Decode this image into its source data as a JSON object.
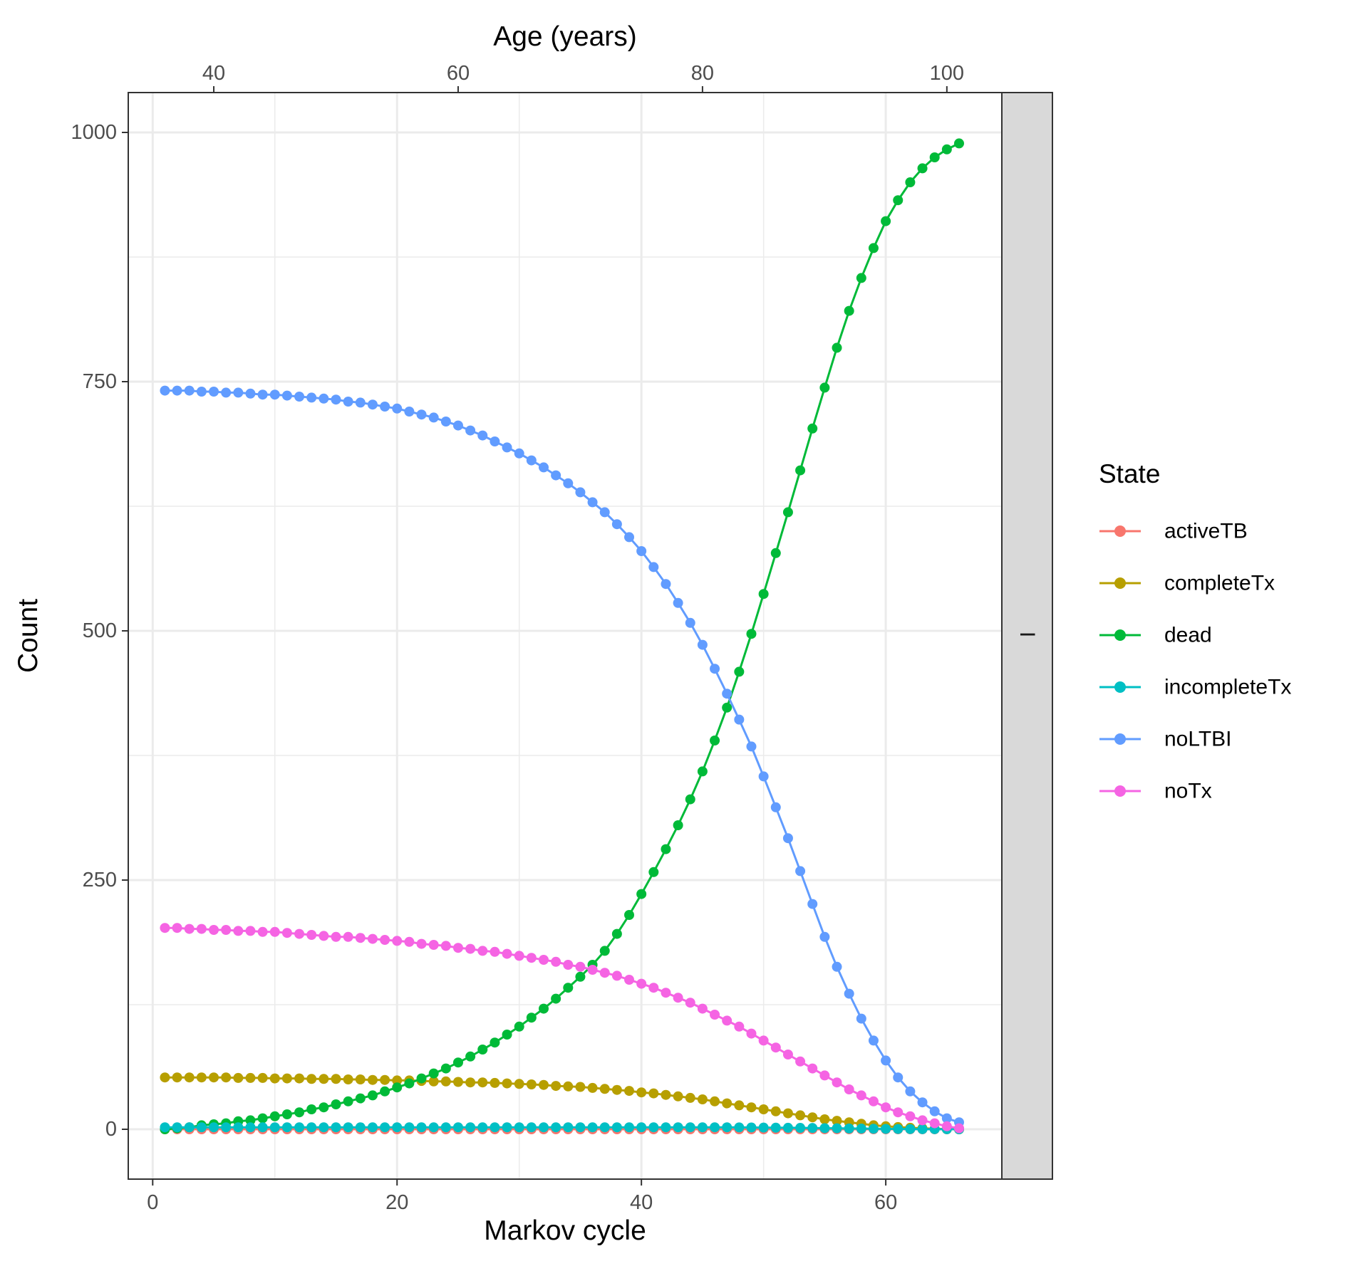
{
  "chart_data": {
    "type": "line",
    "xlabel": "Markov cycle",
    "x2label": "Age (years)",
    "ylabel": "Count",
    "legend_title": "State",
    "legend_position": "right",
    "facet_strip_label": "I",
    "grid": true,
    "xlim": [
      -2,
      69.5
    ],
    "ylim": [
      -50,
      1040
    ],
    "x_ticks": [
      0,
      20,
      40,
      60
    ],
    "x2_ticks": [
      40,
      60,
      80,
      100
    ],
    "x2_offset": 35,
    "y_ticks": [
      0,
      250,
      500,
      750,
      1000
    ],
    "x": [
      1,
      2,
      3,
      4,
      5,
      6,
      7,
      8,
      9,
      10,
      11,
      12,
      13,
      14,
      15,
      16,
      17,
      18,
      19,
      20,
      21,
      22,
      23,
      24,
      25,
      26,
      27,
      28,
      29,
      30,
      31,
      32,
      33,
      34,
      35,
      36,
      37,
      38,
      39,
      40,
      41,
      42,
      43,
      44,
      45,
      46,
      47,
      48,
      49,
      50,
      51,
      52,
      53,
      54,
      55,
      56,
      57,
      58,
      59,
      60,
      61,
      62,
      63,
      64,
      65,
      66
    ],
    "series": [
      {
        "name": "activeTB",
        "color": "#F8766D",
        "values": [
          0,
          0,
          0,
          0,
          0,
          0,
          0,
          0,
          0,
          0,
          0,
          0,
          0,
          0,
          0,
          0,
          0,
          0,
          0,
          0,
          0,
          0,
          0,
          0,
          0,
          0,
          0,
          0,
          0,
          0,
          0,
          0,
          0,
          0,
          0,
          0,
          0,
          0,
          0,
          0,
          0,
          0,
          0,
          0,
          0,
          0,
          0,
          0,
          0,
          0,
          0,
          0,
          0,
          0,
          0,
          0,
          0,
          0,
          0,
          0,
          0,
          0,
          0,
          0,
          0,
          0
        ]
      },
      {
        "name": "completeTx",
        "color": "#B79F00",
        "values": [
          52,
          52,
          52,
          52,
          52,
          52,
          51.5,
          51.5,
          51.5,
          51,
          51,
          51,
          50.5,
          50.5,
          50.5,
          50,
          50,
          49.5,
          49.5,
          49,
          49,
          48.5,
          48,
          48,
          47.5,
          47,
          47,
          46.5,
          46,
          45.5,
          45,
          44.5,
          43.5,
          43,
          42.5,
          41.5,
          40.5,
          39.5,
          38.5,
          37,
          36,
          34.5,
          33,
          31.5,
          30,
          28,
          26,
          24,
          22,
          20,
          18,
          16,
          14,
          12,
          10,
          8.5,
          7,
          5.5,
          4,
          3,
          2.2,
          1.5,
          1,
          0.5,
          0.2,
          0
        ]
      },
      {
        "name": "dead",
        "color": "#00BA38",
        "values": [
          0,
          1,
          2,
          4,
          5,
          6,
          8,
          9,
          11,
          13,
          15,
          17,
          20,
          22,
          25,
          28,
          31,
          34,
          38,
          42,
          46,
          51,
          56,
          61,
          67,
          73,
          80,
          87,
          95,
          103,
          112,
          121,
          131,
          142,
          153,
          165,
          179,
          196,
          215,
          236,
          258,
          281,
          305,
          331,
          359,
          390,
          423,
          459,
          497,
          537,
          578,
          619,
          661,
          703,
          744,
          784,
          821,
          854,
          884,
          911,
          932,
          950,
          964,
          975,
          983,
          989
        ]
      },
      {
        "name": "incompleteTx",
        "color": "#00BFC4",
        "values": [
          2,
          2,
          2,
          2,
          2,
          2,
          2,
          2,
          2,
          2,
          2,
          2,
          2,
          2,
          2,
          2,
          2,
          2,
          2,
          2,
          2,
          2,
          2,
          2,
          2,
          2,
          2,
          2,
          2,
          2,
          2,
          2,
          2,
          2,
          2,
          2,
          2,
          2,
          2,
          2,
          2,
          2,
          2,
          2,
          2,
          2,
          2,
          1.9,
          1.8,
          1.7,
          1.6,
          1.5,
          1.4,
          1.3,
          1.1,
          1,
          0.8,
          0.7,
          0.5,
          0.4,
          0.3,
          0.2,
          0.1,
          0.1,
          0.05,
          0
        ]
      },
      {
        "name": "noLTBI",
        "color": "#619CFF",
        "values": [
          741,
          741,
          741,
          740,
          740,
          739,
          739,
          738,
          737,
          737,
          736,
          735,
          734,
          733,
          732,
          730,
          729,
          727,
          725,
          723,
          720,
          717,
          714,
          710,
          706,
          701,
          696,
          690,
          684,
          678,
          671,
          664,
          656,
          648,
          639,
          629,
          619,
          607,
          594,
          580,
          564,
          547,
          528,
          508,
          486,
          462,
          437,
          411,
          384,
          354,
          323,
          292,
          259,
          226,
          193,
          163,
          136,
          111,
          89,
          69,
          52,
          38,
          27,
          18,
          11,
          7
        ]
      },
      {
        "name": "noTx",
        "color": "#F564E3",
        "values": [
          202,
          202,
          201,
          201,
          200,
          200,
          199,
          199,
          198,
          198,
          197,
          196,
          195,
          194,
          193,
          193,
          192,
          191,
          190,
          189,
          188,
          186,
          185,
          184,
          182,
          181,
          179,
          178,
          176,
          174,
          172,
          170,
          168,
          165,
          163,
          160,
          157,
          154,
          150,
          146,
          142,
          137,
          132,
          127,
          121,
          115,
          109,
          103,
          96,
          89,
          82,
          75,
          68,
          61,
          54,
          47,
          40,
          34,
          28,
          22,
          17,
          13,
          9,
          6,
          3,
          1
        ]
      }
    ]
  }
}
